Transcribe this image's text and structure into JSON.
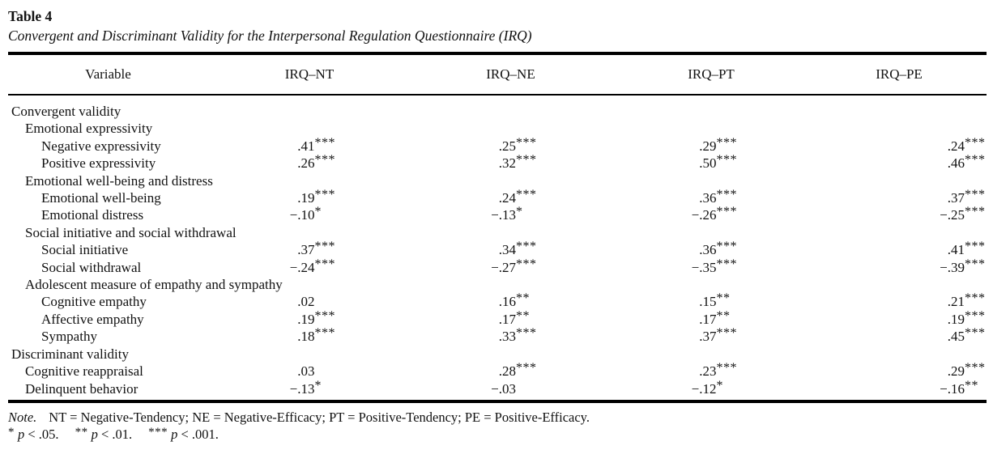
{
  "page": {
    "label": "Table 4",
    "caption": "Convergent and Discriminant Validity for the Interpersonal Regulation Questionnaire (IRQ)"
  },
  "table": {
    "columns": [
      "Variable",
      "IRQ–NT",
      "IRQ–NE",
      "IRQ–PT",
      "IRQ–PE"
    ],
    "rows": [
      {
        "label": "Convergent validity",
        "indent": 0,
        "values": [
          "",
          "",
          "",
          ""
        ]
      },
      {
        "label": "Emotional expressivity",
        "indent": 1,
        "values": [
          "",
          "",
          "",
          ""
        ]
      },
      {
        "label": "Negative expressivity",
        "indent": 2,
        "values": [
          ".41***",
          ".25***",
          ".29***",
          ".24***"
        ]
      },
      {
        "label": "Positive expressivity",
        "indent": 2,
        "values": [
          ".26***",
          ".32***",
          ".50***",
          ".46***"
        ]
      },
      {
        "label": "Emotional well-being and distress",
        "indent": 1,
        "values": [
          "",
          "",
          "",
          ""
        ]
      },
      {
        "label": "Emotional well-being",
        "indent": 2,
        "values": [
          ".19***",
          ".24***",
          ".36***",
          ".37***"
        ]
      },
      {
        "label": "Emotional distress",
        "indent": 2,
        "values": [
          "−.10*",
          "−.13*",
          "−.26***",
          "−.25***"
        ]
      },
      {
        "label": "Social initiative and social withdrawal",
        "indent": 1,
        "values": [
          "",
          "",
          "",
          ""
        ]
      },
      {
        "label": "Social initiative",
        "indent": 2,
        "values": [
          ".37***",
          ".34***",
          ".36***",
          ".41***"
        ]
      },
      {
        "label": "Social withdrawal",
        "indent": 2,
        "values": [
          "−.24***",
          "−.27***",
          "−.35***",
          "−.39***"
        ]
      },
      {
        "label": "Adolescent measure of empathy and sympathy",
        "indent": 1,
        "values": [
          "",
          "",
          "",
          ""
        ]
      },
      {
        "label": "Cognitive empathy",
        "indent": 2,
        "values": [
          ".02",
          ".16**",
          ".15**",
          ".21***"
        ]
      },
      {
        "label": "Affective empathy",
        "indent": 2,
        "values": [
          ".19***",
          ".17**",
          ".17**",
          ".19***"
        ]
      },
      {
        "label": "Sympathy",
        "indent": 2,
        "values": [
          ".18***",
          ".33***",
          ".37***",
          ".45***"
        ]
      },
      {
        "label": "Discriminant validity",
        "indent": 0,
        "values": [
          "",
          "",
          "",
          ""
        ]
      },
      {
        "label": "Cognitive reappraisal",
        "indent": 1,
        "values": [
          ".03",
          ".28***",
          ".23***",
          ".29***"
        ]
      },
      {
        "label": "Delinquent behavior",
        "indent": 1,
        "values": [
          "−.13*",
          "−.03",
          "−.12*",
          "−.16**"
        ]
      }
    ]
  },
  "note": {
    "prefix": "Note.",
    "text": "NT = Negative-Tendency; NE = Negative-Efficacy; PT = Positive-Tendency; PE = Positive-Efficacy.",
    "significance": [
      {
        "stars": "*",
        "var": "p",
        "condition": "< .05."
      },
      {
        "stars": "**",
        "var": "p",
        "condition": "< .01."
      },
      {
        "stars": "***",
        "var": "p",
        "condition": "< .001."
      }
    ]
  }
}
